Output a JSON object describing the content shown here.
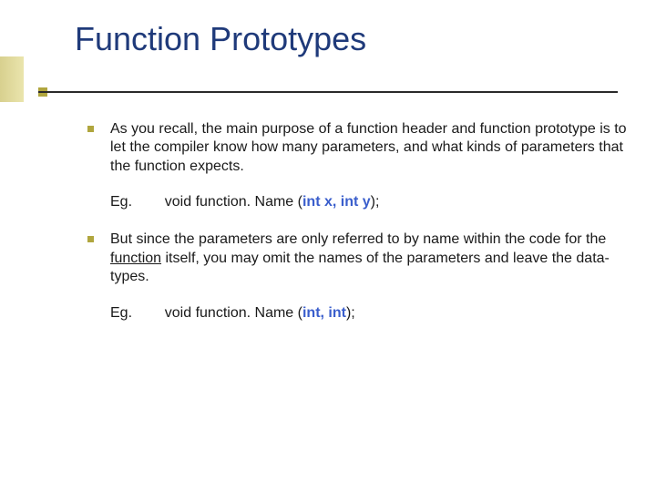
{
  "title": "Function Prototypes",
  "title_color": "#1f3a7a",
  "title_fontsize": 36,
  "accent_color": "#b0a63e",
  "body_fontsize": 16,
  "bullets": [
    {
      "text": "As you recall, the main purpose of a function header and function prototype is to let the compiler know how many parameters, and what kinds of parameters that the function expects.",
      "example_label": "Eg.",
      "example_prefix": "void  function. Name (",
      "example_code": "int x, int y",
      "example_suffix": ");"
    },
    {
      "text_pre": "But since the parameters are only referred to by name within the code for the ",
      "text_underlined": "function",
      "text_post": " itself, you may omit the names of the parameters and leave the data-types.",
      "example_label": "Eg.",
      "example_prefix": "void  function. Name (",
      "example_code": "int, int",
      "example_suffix": ");"
    }
  ]
}
